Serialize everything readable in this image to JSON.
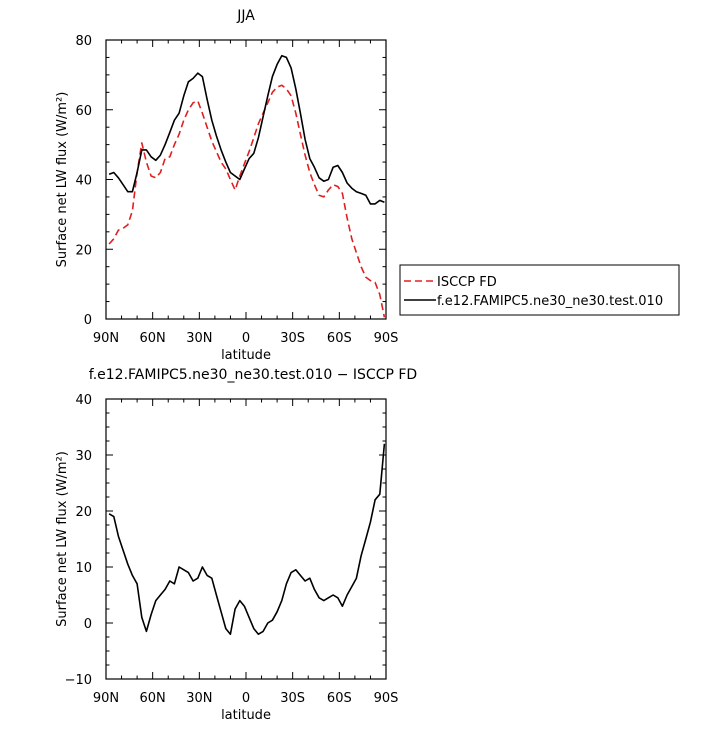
{
  "chart_data": [
    {
      "type": "line",
      "title": "JJA",
      "xlabel": "latitude",
      "ylabel": "Surface net LW flux (W/m²)",
      "xlim": [
        90,
        -90
      ],
      "ylim": [
        0,
        80
      ],
      "x_ticks": [
        90,
        60,
        30,
        0,
        -30,
        -60,
        -90
      ],
      "x_tick_labels": [
        "90N",
        "60N",
        "30N",
        "0",
        "30S",
        "60S",
        "90S"
      ],
      "y_ticks": [
        0,
        20,
        40,
        60,
        80
      ],
      "y_tick_labels": [
        "0",
        "20",
        "40",
        "60",
        "80"
      ],
      "legend_position": "right",
      "series": [
        {
          "name": "ISCCP FD",
          "color": "#e02020",
          "dash": "dashed",
          "x": [
            88,
            85,
            82,
            79,
            76,
            73,
            70,
            67,
            64,
            61,
            58,
            55,
            52,
            49,
            46,
            43,
            40,
            37,
            34,
            31,
            28,
            25,
            22,
            19,
            16,
            13,
            10,
            7,
            4,
            1,
            -2,
            -5,
            -8,
            -11,
            -14,
            -17,
            -20,
            -23,
            -26,
            -29,
            -32,
            -35,
            -38,
            -41,
            -44,
            -47,
            -50,
            -53,
            -56,
            -59,
            -62,
            -65,
            -68,
            -71,
            -74,
            -77,
            -80,
            -83,
            -86,
            -89
          ],
          "y": [
            21.5,
            23,
            25.5,
            26,
            27,
            31,
            42,
            50.5,
            45,
            41,
            40.5,
            42,
            46,
            46.5,
            50,
            53,
            57,
            60,
            62,
            62.5,
            59,
            55,
            51,
            48,
            45,
            43,
            40,
            37,
            41,
            44.5,
            48,
            52,
            56,
            59,
            62,
            65,
            66.5,
            67,
            66,
            64,
            59,
            53,
            47,
            42,
            38.5,
            35.5,
            35,
            37,
            38.5,
            38,
            36,
            29,
            23,
            19,
            15,
            12,
            11,
            10.5,
            7,
            0.5
          ]
        },
        {
          "name": "f.e12.FAMIPC5.ne30_ne30.test.010",
          "color": "#000000",
          "dash": "solid",
          "x": [
            88,
            85,
            82,
            79,
            76,
            73,
            70,
            67,
            64,
            61,
            58,
            55,
            52,
            49,
            46,
            43,
            40,
            37,
            34,
            31,
            28,
            25,
            22,
            19,
            16,
            13,
            10,
            7,
            4,
            1,
            -2,
            -5,
            -8,
            -11,
            -14,
            -17,
            -20,
            -23,
            -26,
            -29,
            -32,
            -35,
            -38,
            -41,
            -44,
            -47,
            -50,
            -53,
            -56,
            -59,
            -62,
            -65,
            -68,
            -71,
            -74,
            -77,
            -80,
            -83,
            -86,
            -89
          ],
          "y": [
            41.5,
            42,
            40.5,
            38.5,
            36.5,
            36.5,
            42,
            48.5,
            48.5,
            46.5,
            45.5,
            47,
            50,
            53.5,
            57,
            59,
            64,
            68,
            69,
            70.5,
            69.5,
            63,
            57,
            52.5,
            48.5,
            45,
            42,
            41,
            40,
            43,
            46,
            47.5,
            52,
            58,
            64,
            69.5,
            73,
            75.5,
            75,
            72,
            66,
            59,
            51.5,
            46,
            43.5,
            40.5,
            39.5,
            40,
            43.5,
            44,
            42,
            39,
            37.5,
            36.5,
            36,
            35.5,
            33,
            33,
            34,
            33.5
          ]
        }
      ]
    },
    {
      "type": "line",
      "title": "f.e12.FAMIPC5.ne30_ne30.test.010 − ISCCP FD",
      "xlabel": "latitude",
      "ylabel": "Surface net LW flux (W/m²)",
      "xlim": [
        90,
        -90
      ],
      "ylim": [
        -10,
        40
      ],
      "x_ticks": [
        90,
        60,
        30,
        0,
        -30,
        -60,
        -90
      ],
      "x_tick_labels": [
        "90N",
        "60N",
        "30N",
        "0",
        "30S",
        "60S",
        "90S"
      ],
      "y_ticks": [
        -10,
        0,
        10,
        20,
        30,
        40
      ],
      "y_tick_labels": [
        "−10",
        "0",
        "10",
        "20",
        "30",
        "40"
      ],
      "series": [
        {
          "name": "",
          "color": "#000000",
          "dash": "solid",
          "x": [
            88,
            85,
            82,
            79,
            76,
            73,
            70,
            67,
            64,
            61,
            58,
            55,
            52,
            49,
            46,
            43,
            40,
            37,
            34,
            31,
            28,
            25,
            22,
            19,
            16,
            13,
            10,
            7,
            4,
            1,
            -2,
            -5,
            -8,
            -11,
            -14,
            -17,
            -20,
            -23,
            -26,
            -29,
            -32,
            -35,
            -38,
            -41,
            -44,
            -47,
            -50,
            -53,
            -56,
            -59,
            -62,
            -65,
            -68,
            -71,
            -74,
            -77,
            -80,
            -83,
            -86,
            -89
          ],
          "y": [
            19.5,
            19,
            15.5,
            13,
            10.5,
            8.5,
            7,
            1,
            -1.5,
            1.5,
            4,
            5,
            6,
            7.5,
            7,
            10,
            9.5,
            9,
            7.5,
            8,
            10,
            8.5,
            8,
            5,
            2,
            -1,
            -2,
            2.5,
            4,
            3,
            1,
            -1,
            -2,
            -1.5,
            0,
            0.5,
            2,
            4,
            7,
            9,
            9.5,
            8.5,
            7.5,
            8,
            6,
            4.5,
            4,
            4.5,
            5,
            4.5,
            3,
            5,
            6.5,
            8,
            12,
            15,
            18,
            22,
            23,
            32
          ]
        }
      ]
    }
  ],
  "legend": {
    "entries": [
      "ISCCP FD",
      "f.e12.FAMIPC5.ne30_ne30.test.010"
    ]
  }
}
